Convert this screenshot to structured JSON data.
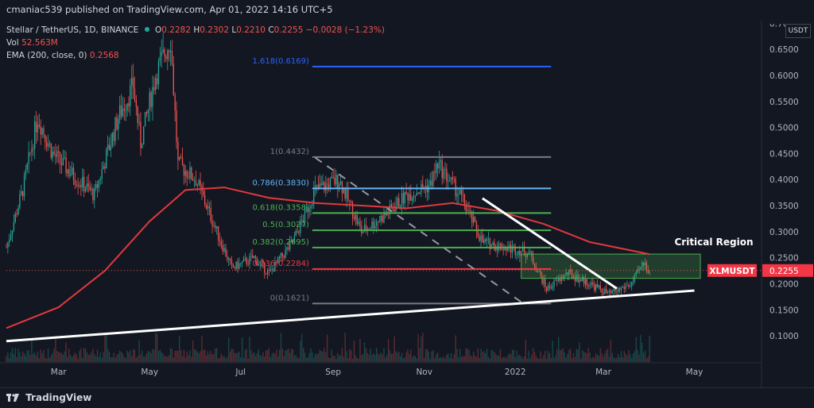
{
  "header": {
    "published_line": "cmaniac539 published on TradingView.com, Apr 01, 2022 14:16 UTC+5"
  },
  "legend": {
    "symbol": "Stellar / TetherUS, 1D, BINANCE",
    "o_label": "O",
    "o_val": "0.2282",
    "h_label": "H",
    "h_val": "0.2302",
    "l_label": "L",
    "l_val": "0.2210",
    "c_label": "C",
    "c_val": "0.2255",
    "change": "−0.0028 (−1.23%)",
    "vol_label": "Vol",
    "vol_val": "52.563M",
    "ema_label": "EMA (200, close, 0)",
    "ema_val": "0.2568"
  },
  "price_axis": {
    "currency": "USDT",
    "top_partial": "0.7000"
  },
  "footer": {
    "brand": "TradingView"
  },
  "colors": {
    "background": "#131722",
    "ema": "#e0393e",
    "up_candle": "#26a69a",
    "down_candle": "#ef5350",
    "fib_grey": "#787b86",
    "fib_blue": "#64b5f6",
    "fib_green": "#4caf50",
    "fib_red": "#f23645",
    "fib_1618": "#2962ff",
    "zone_fill": "#4caf5040",
    "label_bg": "#f23645"
  },
  "chart_data": {
    "type": "candlestick",
    "symbol": "XLMUSDT",
    "current_price": 0.2255,
    "y_axis": {
      "ticks": [
        0.1,
        0.15,
        0.2,
        0.25,
        0.3,
        0.35,
        0.4,
        0.45,
        0.5,
        0.55,
        0.6,
        0.65
      ],
      "tick_labels": [
        "0.1000",
        "0.1500",
        "0.2000",
        "0.2500",
        "0.3000",
        "0.3500",
        "0.4000",
        "0.4500",
        "0.5000",
        "0.5500",
        "0.6000",
        "0.6500"
      ],
      "ylim": [
        0.05,
        0.705
      ]
    },
    "x_axis": {
      "labels": [
        "Mar",
        "May",
        "Jul",
        "Sep",
        "Nov",
        "2022",
        "Mar",
        "May"
      ],
      "label_dates": [
        "2021-03-01",
        "2021-05-01",
        "2021-07-01",
        "2021-09-01",
        "2021-11-01",
        "2022-01-01",
        "2022-03-01",
        "2022-05-01"
      ],
      "xlim": [
        "2021-01-25",
        "2022-06-15"
      ]
    },
    "price_path": [
      {
        "date": "2021-01-25",
        "close": 0.27
      },
      {
        "date": "2021-02-05",
        "close": 0.38
      },
      {
        "date": "2021-02-15",
        "close": 0.52
      },
      {
        "date": "2021-02-25",
        "close": 0.45
      },
      {
        "date": "2021-03-10",
        "close": 0.41
      },
      {
        "date": "2021-03-25",
        "close": 0.37
      },
      {
        "date": "2021-04-10",
        "close": 0.52
      },
      {
        "date": "2021-04-20",
        "close": 0.58
      },
      {
        "date": "2021-04-25",
        "close": 0.47
      },
      {
        "date": "2021-05-05",
        "close": 0.6
      },
      {
        "date": "2021-05-15",
        "close": 0.67
      },
      {
        "date": "2021-05-20",
        "close": 0.43
      },
      {
        "date": "2021-06-01",
        "close": 0.4
      },
      {
        "date": "2021-06-15",
        "close": 0.3
      },
      {
        "date": "2021-06-25",
        "close": 0.23
      },
      {
        "date": "2021-07-10",
        "close": 0.25
      },
      {
        "date": "2021-07-20",
        "close": 0.22
      },
      {
        "date": "2021-08-05",
        "close": 0.28
      },
      {
        "date": "2021-08-20",
        "close": 0.38
      },
      {
        "date": "2021-09-05",
        "close": 0.4
      },
      {
        "date": "2021-09-20",
        "close": 0.3
      },
      {
        "date": "2021-10-05",
        "close": 0.33
      },
      {
        "date": "2021-10-20",
        "close": 0.37
      },
      {
        "date": "2021-11-05",
        "close": 0.39
      },
      {
        "date": "2021-11-10",
        "close": 0.43
      },
      {
        "date": "2021-11-25",
        "close": 0.37
      },
      {
        "date": "2021-12-10",
        "close": 0.28
      },
      {
        "date": "2021-12-25",
        "close": 0.27
      },
      {
        "date": "2022-01-10",
        "close": 0.26
      },
      {
        "date": "2022-01-22",
        "close": 0.19
      },
      {
        "date": "2022-02-05",
        "close": 0.22
      },
      {
        "date": "2022-02-20",
        "close": 0.2
      },
      {
        "date": "2022-03-05",
        "close": 0.18
      },
      {
        "date": "2022-03-20",
        "close": 0.2
      },
      {
        "date": "2022-03-28",
        "close": 0.24
      },
      {
        "date": "2022-04-01",
        "close": 0.2255
      }
    ],
    "ema200": [
      {
        "date": "2021-01-25",
        "value": 0.115
      },
      {
        "date": "2021-03-01",
        "value": 0.155
      },
      {
        "date": "2021-04-01",
        "value": 0.225
      },
      {
        "date": "2021-05-01",
        "value": 0.32
      },
      {
        "date": "2021-05-25",
        "value": 0.38
      },
      {
        "date": "2021-06-20",
        "value": 0.385
      },
      {
        "date": "2021-07-20",
        "value": 0.365
      },
      {
        "date": "2021-08-20",
        "value": 0.355
      },
      {
        "date": "2021-09-20",
        "value": 0.35
      },
      {
        "date": "2021-10-20",
        "value": 0.345
      },
      {
        "date": "2021-11-20",
        "value": 0.355
      },
      {
        "date": "2021-12-20",
        "value": 0.34
      },
      {
        "date": "2022-01-20",
        "value": 0.315
      },
      {
        "date": "2022-02-20",
        "value": 0.28
      },
      {
        "date": "2022-04-01",
        "value": 0.2568
      }
    ],
    "fibonacci": {
      "levels": [
        {
          "label": "0(0.1621)",
          "value": 0.1621,
          "color": "#787b86"
        },
        {
          "label": "0.236(0.2284)",
          "value": 0.2284,
          "color": "#f23645"
        },
        {
          "label": "0.382(0.2695)",
          "value": 0.2695,
          "color": "#4caf50"
        },
        {
          "label": "0.5(0.3027)",
          "value": 0.3027,
          "color": "#4caf50"
        },
        {
          "label": "0.618(0.3358)",
          "value": 0.3358,
          "color": "#4caf50"
        },
        {
          "label": "0.786(0.3830)",
          "value": 0.383,
          "color": "#64b5f6"
        },
        {
          "label": "1(0.4432)",
          "value": 0.4432,
          "color": "#787b86"
        },
        {
          "label": "1.618(0.6169)",
          "value": 0.6169,
          "color": "#2962ff"
        }
      ],
      "start_date": "2021-08-18",
      "end_date": "2022-01-25"
    },
    "annotations": {
      "critical_region": {
        "label": "Critical Region",
        "low": 0.2105,
        "high": 0.257,
        "start_date": "2022-01-05",
        "end_date": "2022-05-05"
      },
      "support_line": {
        "from": {
          "date": "2021-01-25",
          "value": 0.09
        },
        "to": {
          "date": "2022-05-01",
          "value": 0.187
        }
      },
      "descending_trendline": {
        "from": {
          "date": "2021-12-10",
          "value": 0.364
        },
        "to": {
          "date": "2022-03-10",
          "value": 0.191
        }
      },
      "dashed_diagonal": {
        "from": {
          "date": "2021-08-20",
          "value": 0.442
        },
        "to": {
          "date": "2022-01-05",
          "value": 0.165
        }
      },
      "symbol_label": "XLMUSDT",
      "price_label": "0.2255"
    },
    "volume_note": "volume histogram at bottom"
  }
}
